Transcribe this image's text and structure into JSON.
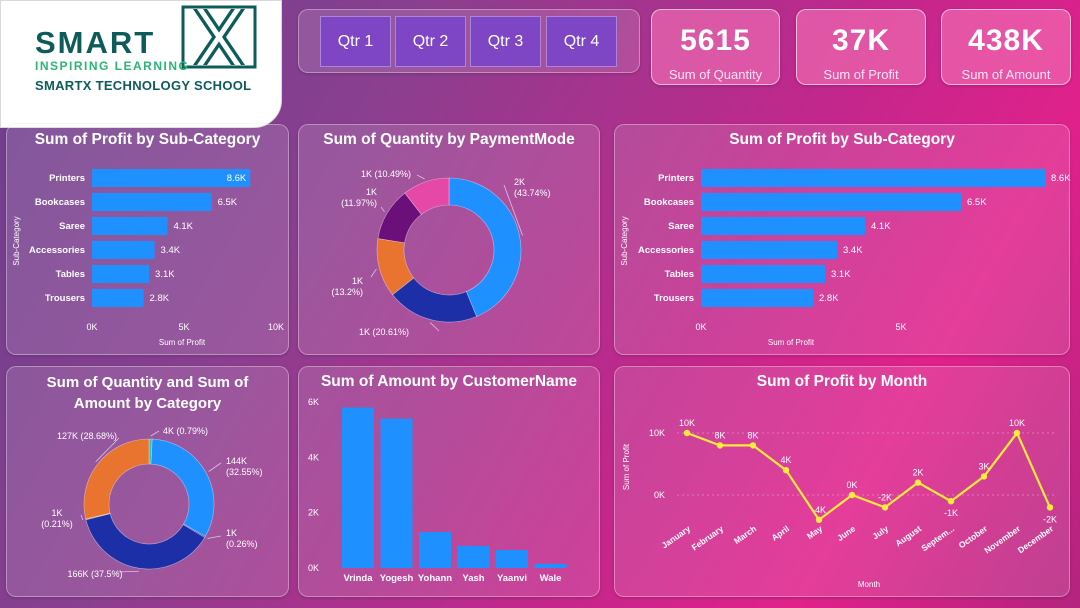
{
  "brand": {
    "name": "SMART",
    "tagline": "INSPIRING LEARNING",
    "school": "SMARTX TECHNOLOGY SCHOOL",
    "colors": {
      "teal": "#0e5c5a",
      "green": "#2bb673"
    }
  },
  "slicer": {
    "quarters": [
      "Qtr 1",
      "Qtr 2",
      "Qtr 3",
      "Qtr 4"
    ]
  },
  "kpis": [
    {
      "value": "5615",
      "label": "Sum of Quantity"
    },
    {
      "value": "37K",
      "label": "Sum of Profit"
    },
    {
      "value": "438K",
      "label": "Sum of Amount"
    }
  ],
  "chart_data": [
    {
      "id": "profit_subcat_left",
      "type": "bar",
      "orientation": "horizontal",
      "title": "Sum of Profit by Sub-Category",
      "categories": [
        "Printers",
        "Bookcases",
        "Saree",
        "Accessories",
        "Tables",
        "Trousers"
      ],
      "values": [
        8600,
        6500,
        4100,
        3400,
        3100,
        2800
      ],
      "value_labels": [
        "8.6K",
        "6.5K",
        "4.1K",
        "3.4K",
        "3.1K",
        "2.8K"
      ],
      "xlabel": "Sum of Profit",
      "ylabel": "Sub-Category",
      "xlim": [
        0,
        10000
      ],
      "xticks": [
        "0K",
        "5K",
        "10K"
      ],
      "color": "#1e90ff"
    },
    {
      "id": "quantity_paymentmode",
      "type": "pie",
      "donut": true,
      "title": "Sum of Quantity by PaymentMode",
      "slices": [
        {
          "pct": 43.74,
          "label_line1": "2K",
          "label_line2": "(43.74%)",
          "color": "#1e90ff"
        },
        {
          "pct": 20.61,
          "label_line1": "1K (20.61%)",
          "label_line2": "",
          "color": "#1c2fa6"
        },
        {
          "pct": 13.2,
          "label_line1": "1K",
          "label_line2": "(13.2%)",
          "color": "#e8742f"
        },
        {
          "pct": 11.97,
          "label_line1": "1K",
          "label_line2": "(11.97%)",
          "color": "#6b0f7a"
        },
        {
          "pct": 10.49,
          "label_line1": "1K (10.49%)",
          "label_line2": "",
          "color": "#e548a6"
        }
      ]
    },
    {
      "id": "profit_subcat_right",
      "type": "bar",
      "orientation": "horizontal",
      "title": "Sum of Profit by Sub-Category",
      "categories": [
        "Printers",
        "Bookcases",
        "Saree",
        "Accessories",
        "Tables",
        "Trousers"
      ],
      "values": [
        8600,
        6500,
        4100,
        3400,
        3100,
        2800
      ],
      "value_labels": [
        "8.6K",
        "6.5K",
        "4.1K",
        "3.4K",
        "3.1K",
        "2.8K"
      ],
      "xlabel": "Sum of Profit",
      "ylabel": "Sub-Category",
      "xlim": [
        0,
        9000
      ],
      "xticks": [
        "0K",
        "5K"
      ],
      "more_indicator": "...",
      "color": "#1e90ff"
    },
    {
      "id": "qty_amount_category",
      "type": "pie",
      "donut": true,
      "title_line1": "Sum of Quantity and Sum of",
      "title_line2": "Amount by Category",
      "slices": [
        {
          "pct": 0.79,
          "label_line1": "4K (0.79%)",
          "label_line2": "",
          "color": "#2ec4b6"
        },
        {
          "pct": 32.55,
          "label_line1": "144K",
          "label_line2": "(32.55%)",
          "color": "#1e90ff"
        },
        {
          "pct": 0.26,
          "label_line1": "1K",
          "label_line2": "(0.26%)",
          "color": "#1c2fa6"
        },
        {
          "pct": 37.5,
          "label_line1": "166K (37.5%)",
          "label_line2": "",
          "color": "#1c2fa6"
        },
        {
          "pct": 0.21,
          "label_line1": "1K",
          "label_line2": "(0.21%)",
          "color": "#e8742f"
        },
        {
          "pct": 28.68,
          "label_line1": "127K (28.68%)",
          "label_line2": "",
          "color": "#e8742f"
        }
      ]
    },
    {
      "id": "amount_customer",
      "type": "bar",
      "orientation": "vertical",
      "title": "Sum of Amount by CustomerName",
      "categories": [
        "Vrinda",
        "Yogesh",
        "Yohann",
        "Yash",
        "Yaanvi",
        "Wale"
      ],
      "values": [
        5800,
        5400,
        1300,
        800,
        650,
        150
      ],
      "ylim": [
        0,
        6000
      ],
      "yticks": [
        "0K",
        "2K",
        "4K",
        "6K"
      ],
      "color": "#1e90ff"
    },
    {
      "id": "profit_month",
      "type": "line",
      "title": "Sum of Profit by Month",
      "categories": [
        "January",
        "February",
        "March",
        "April",
        "May",
        "June",
        "July",
        "August",
        "Septem...",
        "October",
        "November",
        "December"
      ],
      "values": [
        10000,
        8000,
        8000,
        4000,
        -4000,
        0,
        -2000,
        2000,
        -1000,
        3000,
        10000,
        -2000
      ],
      "value_labels": [
        "10K",
        "8K",
        "8K",
        "4K",
        "-4K",
        "0K",
        "-2K",
        "2K",
        "-1K",
        "3K",
        "10K",
        "-2K"
      ],
      "xlabel": "Month",
      "ylabel": "Sum of Profit",
      "ylim": [
        -5000,
        12000
      ],
      "yticks": [
        "0K",
        "10K"
      ],
      "color": "#ffeb3b"
    }
  ]
}
